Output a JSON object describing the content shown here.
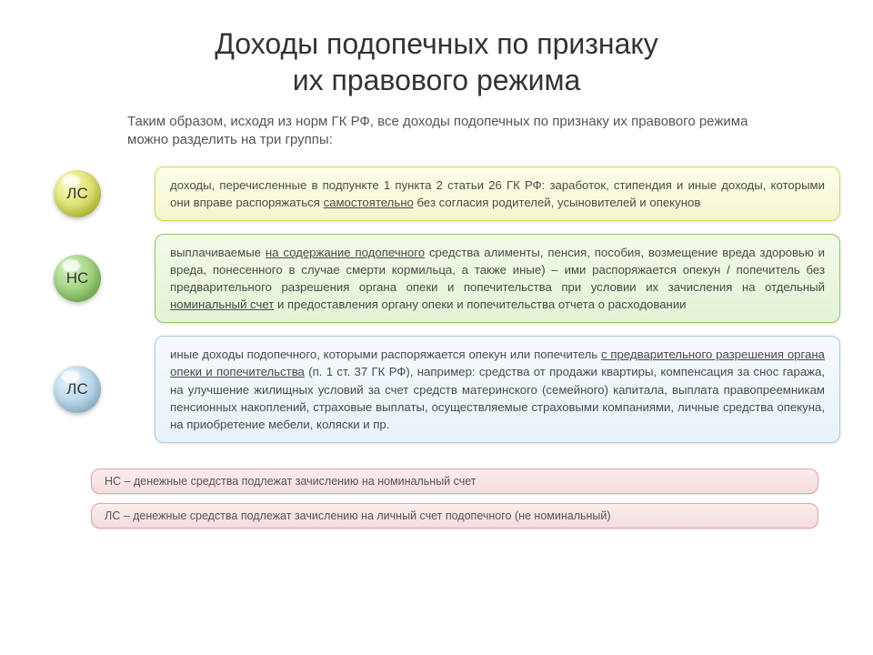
{
  "title_line1": "Доходы подопечных по признаку",
  "title_line2": "их правового режима",
  "intro": "Таким образом, исходя из норм ГК РФ, все доходы подопечных по признаку их правового режима можно разделить на три группы:",
  "rows": [
    {
      "badge": "ЛС",
      "orb_gradient_top": "#fdfec0",
      "orb_gradient_bottom": "#c8cf3f",
      "card_border": "#d2d85a",
      "card_bg_top": "#fdfee8",
      "card_bg_bottom": "#f4f6cf",
      "text_pre": "доходы, перечисленные в подпункте 1 пункта 2 статьи 26 ГК РФ: заработок, стипендия и иные доходы, которыми они вправе распоряжаться ",
      "underlined1": "самостоятельно",
      "text_mid": " без согласия родителей, усыновителей и опекунов",
      "underlined2": "",
      "text_post": ""
    },
    {
      "badge": "НС",
      "orb_gradient_top": "#d6f2c2",
      "orb_gradient_bottom": "#7fbf56",
      "card_border": "#8fc96c",
      "card_bg_top": "#f2faea",
      "card_bg_bottom": "#e3f3d4",
      "text_pre": "выплачиваемые ",
      "underlined1": "на содержание подопечного",
      "text_mid": " средства алименты, пенсия, пособия, возмещение вреда здоровью и вреда, понесенного в случае смерти кормильца, а также иные) – ими распоряжается опекун / попечитель без предварительного разрешения органа опеки и попечительства при условии их зачисления на отдельный ",
      "underlined2": "номинальный счет",
      "text_post": " и предоставления органу опеки и попечительства отчета о расходовании"
    },
    {
      "badge": "ЛС",
      "orb_gradient_top": "#e6f3fb",
      "orb_gradient_bottom": "#a0c8e0",
      "card_border": "#a9cce2",
      "card_bg_top": "#f5fafd",
      "card_bg_bottom": "#e8f2f8",
      "text_pre": "иные доходы подопечного, которыми распоряжается опекун или попечитель ",
      "underlined1": "с предварительного разрешения органа опеки и попечительства",
      "text_mid": " (п. 1 ст. 37 ГК РФ), например: средства от продажи квартиры, компенсация за снос гаража, на улучшение жилищных условий за счет средств материнского (семейного) капитала, выплата правопреемникам пенсионных накоплений, страховые выплаты, осуществляемые страховыми компаниями, личные средства опекуна, на приобретение мебели, коляски и пр.",
      "underlined2": "",
      "text_post": ""
    }
  ],
  "legend": [
    {
      "text": "НС – денежные средства подлежат зачислению на номинальный счет",
      "border": "#e6a1a1",
      "bg_top": "#fbeeee",
      "bg_bottom": "#f3dcdc"
    },
    {
      "text": "ЛС – денежные средства подлежат зачислению на личный счет подопечного (не номинальный)",
      "border": "#e6a1a1",
      "bg_top": "#fbeeee",
      "bg_bottom": "#f3dcdc"
    }
  ]
}
